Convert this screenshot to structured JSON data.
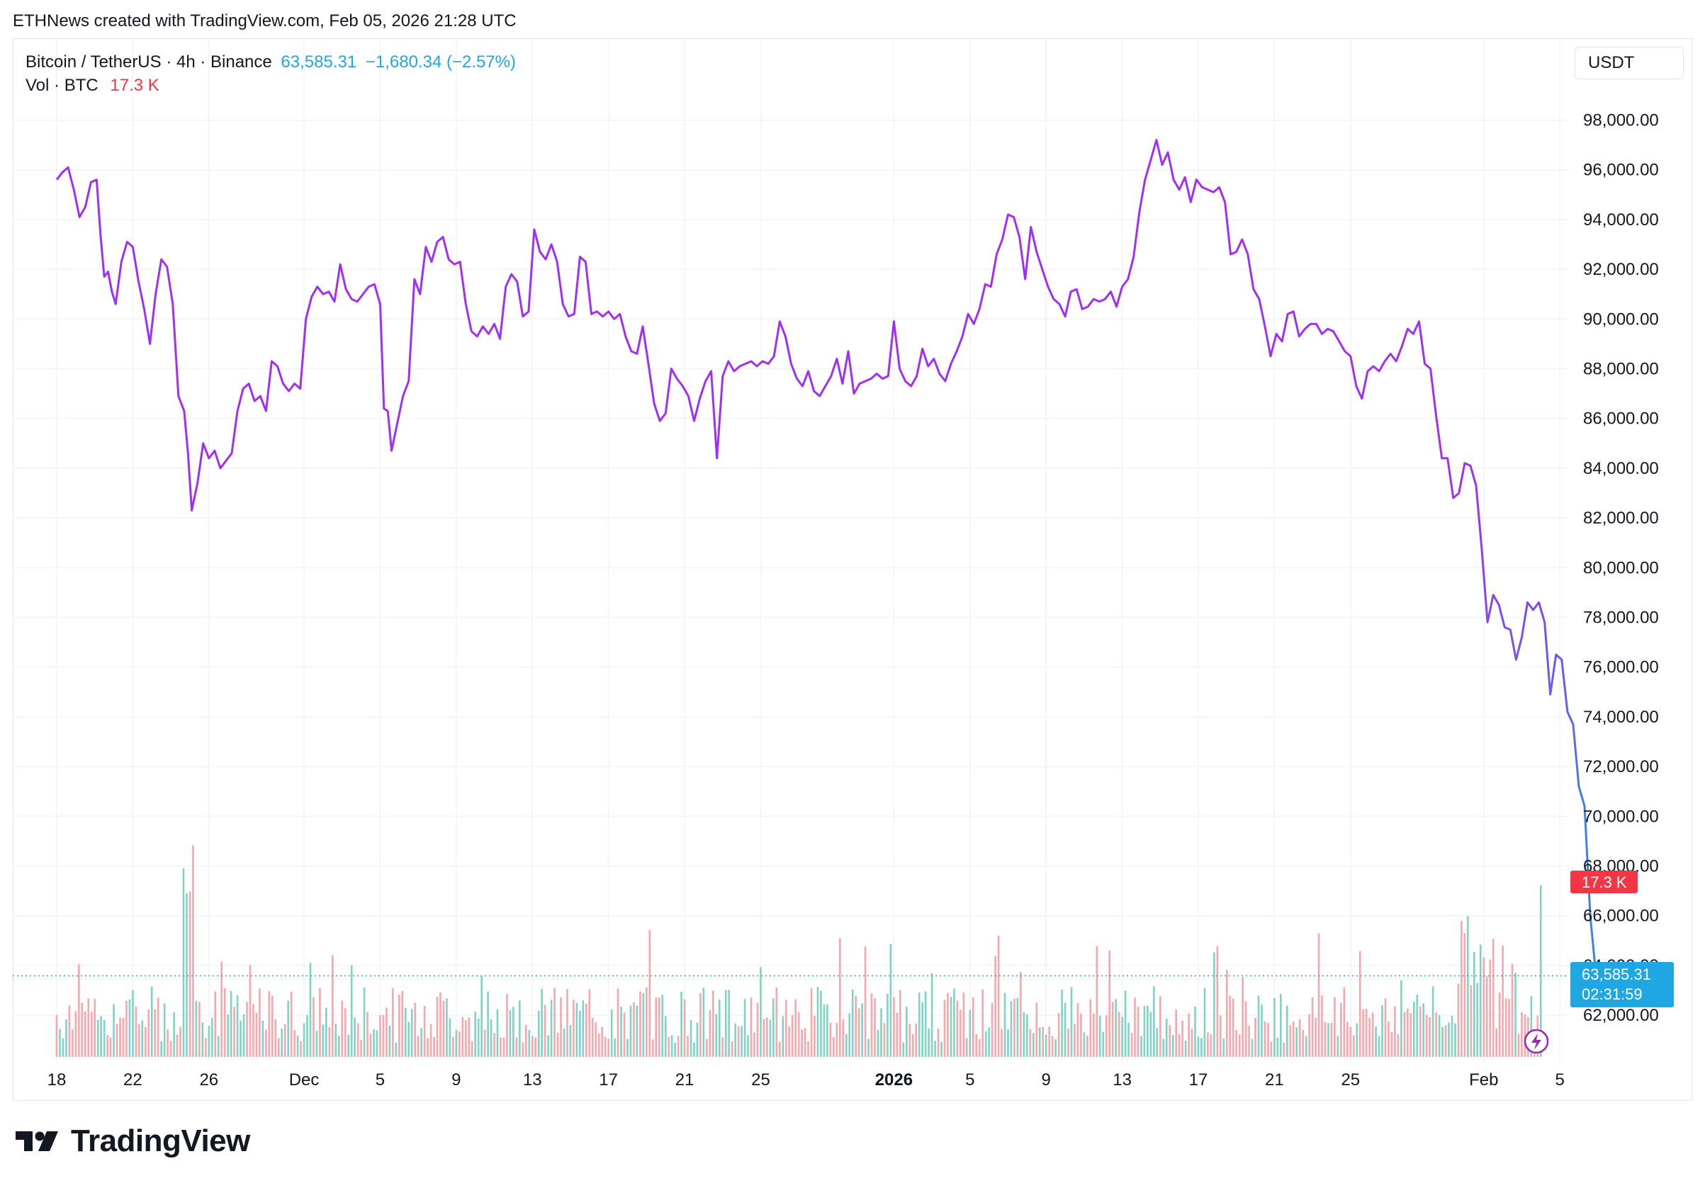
{
  "header": {
    "caption": "ETHNews created with TradingView.com, Feb 05, 2026 21:28 UTC"
  },
  "legend": {
    "symbol": "Bitcoin / TetherUS · 4h · Binance",
    "price": "63,585.31",
    "change": "−1,680.34 (−2.57%)",
    "vol_label": "Vol · BTC",
    "vol_value": "17.3 K"
  },
  "currency_button": "USDT",
  "badges": {
    "volume": "17.3 K",
    "price": "63,585.31",
    "countdown": "02:31:59"
  },
  "footer": {
    "logo_text": "TradingView"
  },
  "colors": {
    "line_purple": "#a02ff5",
    "line_blue": "#3f7fe6",
    "price_blue": "#089981",
    "accent_blue": "#1ea7e3",
    "down_red": "#f23645",
    "vol_up": "#7ed3c5",
    "vol_down": "#f7a6ab",
    "grid": "#f0f3fa"
  },
  "chart_data": {
    "type": "line",
    "yaxis": {
      "ticks": [
        62000,
        64000,
        66000,
        68000,
        70000,
        72000,
        74000,
        76000,
        78000,
        80000,
        82000,
        84000,
        86000,
        88000,
        90000,
        92000,
        94000,
        96000,
        98000
      ],
      "tick_labels": [
        "62,000.00",
        "64,000.00",
        "66,000.00",
        "68,000.00",
        "70,000.00",
        "72,000.00",
        "74,000.00",
        "76,000.00",
        "78,000.00",
        "80,000.00",
        "82,000.00",
        "84,000.00",
        "86,000.00",
        "88,000.00",
        "90,000.00",
        "92,000.00",
        "94,000.00",
        "96,000.00",
        "98,000.00"
      ],
      "side": "right"
    },
    "xaxis": {
      "tick_labels": [
        "18",
        "22",
        "26",
        "Dec",
        "5",
        "9",
        "13",
        "17",
        "21",
        "25",
        "2026",
        "5",
        "9",
        "13",
        "17",
        "21",
        "25",
        "Feb",
        "5"
      ],
      "tick_days": [
        0,
        4,
        8,
        13,
        17,
        21,
        25,
        29,
        33,
        37,
        44,
        48,
        52,
        56,
        60,
        64,
        68,
        75,
        79
      ]
    },
    "series": [
      {
        "points": [
          [
            0,
            95600
          ],
          [
            0.3,
            95900
          ],
          [
            0.6,
            96100
          ],
          [
            0.9,
            95200
          ],
          [
            1.2,
            94100
          ],
          [
            1.5,
            94500
          ],
          [
            1.8,
            95500
          ],
          [
            2.1,
            95600
          ],
          [
            2.3,
            93400
          ],
          [
            2.5,
            91700
          ],
          [
            2.7,
            91900
          ],
          [
            2.9,
            91100
          ],
          [
            3.1,
            90600
          ],
          [
            3.4,
            92300
          ],
          [
            3.7,
            93100
          ],
          [
            4.0,
            92900
          ],
          [
            4.3,
            91500
          ],
          [
            4.6,
            90400
          ],
          [
            4.9,
            89000
          ],
          [
            5.2,
            91000
          ],
          [
            5.5,
            92400
          ],
          [
            5.8,
            92100
          ],
          [
            6.1,
            90600
          ],
          [
            6.4,
            86900
          ],
          [
            6.7,
            86300
          ],
          [
            6.9,
            84600
          ],
          [
            7.1,
            82300
          ],
          [
            7.4,
            83400
          ],
          [
            7.7,
            85000
          ],
          [
            8.0,
            84400
          ],
          [
            8.3,
            84700
          ],
          [
            8.6,
            84000
          ],
          [
            8.9,
            84300
          ],
          [
            9.2,
            84600
          ],
          [
            9.5,
            86300
          ],
          [
            9.8,
            87200
          ],
          [
            10.1,
            87400
          ],
          [
            10.4,
            86700
          ],
          [
            10.7,
            86900
          ],
          [
            11.0,
            86300
          ],
          [
            11.3,
            88300
          ],
          [
            11.6,
            88100
          ],
          [
            11.9,
            87400
          ],
          [
            12.2,
            87100
          ],
          [
            12.5,
            87400
          ],
          [
            12.8,
            87200
          ],
          [
            13.1,
            90000
          ],
          [
            13.4,
            90900
          ],
          [
            13.7,
            91300
          ],
          [
            14.0,
            91000
          ],
          [
            14.3,
            91100
          ],
          [
            14.6,
            90700
          ],
          [
            14.9,
            92200
          ],
          [
            15.2,
            91200
          ],
          [
            15.5,
            90800
          ],
          [
            15.8,
            90700
          ],
          [
            16.1,
            91000
          ],
          [
            16.4,
            91300
          ],
          [
            16.7,
            91400
          ],
          [
            17.0,
            90600
          ],
          [
            17.2,
            86400
          ],
          [
            17.4,
            86300
          ],
          [
            17.6,
            84700
          ],
          [
            17.9,
            85800
          ],
          [
            18.2,
            86900
          ],
          [
            18.5,
            87500
          ],
          [
            18.8,
            91600
          ],
          [
            19.1,
            91000
          ],
          [
            19.4,
            92900
          ],
          [
            19.7,
            92300
          ],
          [
            20.0,
            93100
          ],
          [
            20.3,
            93300
          ],
          [
            20.6,
            92400
          ],
          [
            20.9,
            92200
          ],
          [
            21.2,
            92300
          ],
          [
            21.5,
            90600
          ],
          [
            21.8,
            89500
          ],
          [
            22.1,
            89300
          ],
          [
            22.4,
            89700
          ],
          [
            22.7,
            89400
          ],
          [
            23.0,
            89800
          ],
          [
            23.3,
            89200
          ],
          [
            23.6,
            91300
          ],
          [
            23.9,
            91800
          ],
          [
            24.2,
            91500
          ],
          [
            24.5,
            90100
          ],
          [
            24.8,
            90300
          ],
          [
            25.1,
            93600
          ],
          [
            25.4,
            92700
          ],
          [
            25.7,
            92400
          ],
          [
            26.0,
            93000
          ],
          [
            26.3,
            92300
          ],
          [
            26.6,
            90600
          ],
          [
            26.9,
            90100
          ],
          [
            27.2,
            90200
          ],
          [
            27.5,
            92500
          ],
          [
            27.8,
            92300
          ],
          [
            28.1,
            90200
          ],
          [
            28.4,
            90300
          ],
          [
            28.7,
            90100
          ],
          [
            29.0,
            90300
          ],
          [
            29.3,
            90000
          ],
          [
            29.6,
            90200
          ],
          [
            29.9,
            89300
          ],
          [
            30.2,
            88700
          ],
          [
            30.5,
            88600
          ],
          [
            30.8,
            89700
          ],
          [
            31.1,
            88200
          ],
          [
            31.4,
            86600
          ],
          [
            31.7,
            85900
          ],
          [
            32.0,
            86200
          ],
          [
            32.3,
            88000
          ],
          [
            32.6,
            87600
          ],
          [
            32.9,
            87300
          ],
          [
            33.2,
            86900
          ],
          [
            33.5,
            85900
          ],
          [
            33.8,
            86800
          ],
          [
            34.1,
            87500
          ],
          [
            34.4,
            87900
          ],
          [
            34.7,
            84400
          ],
          [
            35.0,
            87700
          ],
          [
            35.3,
            88300
          ],
          [
            35.6,
            87900
          ],
          [
            35.9,
            88100
          ],
          [
            36.2,
            88200
          ],
          [
            36.5,
            88300
          ],
          [
            36.8,
            88100
          ],
          [
            37.1,
            88300
          ],
          [
            37.4,
            88200
          ],
          [
            37.7,
            88500
          ],
          [
            38.0,
            89900
          ],
          [
            38.3,
            89300
          ],
          [
            38.6,
            88200
          ],
          [
            38.9,
            87600
          ],
          [
            39.2,
            87300
          ],
          [
            39.5,
            87900
          ],
          [
            39.8,
            87100
          ],
          [
            40.1,
            86900
          ],
          [
            40.4,
            87300
          ],
          [
            40.7,
            87700
          ],
          [
            41.0,
            88400
          ],
          [
            41.3,
            87400
          ],
          [
            41.6,
            88700
          ],
          [
            41.9,
            87000
          ],
          [
            42.2,
            87400
          ],
          [
            42.5,
            87500
          ],
          [
            42.8,
            87600
          ],
          [
            43.1,
            87800
          ],
          [
            43.4,
            87600
          ],
          [
            43.7,
            87700
          ],
          [
            44.0,
            89900
          ],
          [
            44.3,
            88000
          ],
          [
            44.6,
            87500
          ],
          [
            44.9,
            87300
          ],
          [
            45.2,
            87700
          ],
          [
            45.5,
            88800
          ],
          [
            45.8,
            88100
          ],
          [
            46.1,
            88400
          ],
          [
            46.4,
            87800
          ],
          [
            46.7,
            87500
          ],
          [
            47.0,
            88200
          ],
          [
            47.3,
            88700
          ],
          [
            47.6,
            89300
          ],
          [
            47.9,
            90200
          ],
          [
            48.2,
            89800
          ],
          [
            48.5,
            90400
          ],
          [
            48.8,
            91400
          ],
          [
            49.1,
            91300
          ],
          [
            49.4,
            92600
          ],
          [
            49.7,
            93200
          ],
          [
            50.0,
            94200
          ],
          [
            50.3,
            94100
          ],
          [
            50.6,
            93300
          ],
          [
            50.9,
            91600
          ],
          [
            51.2,
            93700
          ],
          [
            51.5,
            92700
          ],
          [
            51.8,
            92000
          ],
          [
            52.1,
            91300
          ],
          [
            52.4,
            90800
          ],
          [
            52.7,
            90600
          ],
          [
            53.0,
            90100
          ],
          [
            53.3,
            91100
          ],
          [
            53.6,
            91200
          ],
          [
            53.9,
            90400
          ],
          [
            54.2,
            90500
          ],
          [
            54.5,
            90800
          ],
          [
            54.8,
            90700
          ],
          [
            55.1,
            90800
          ],
          [
            55.4,
            91100
          ],
          [
            55.7,
            90500
          ],
          [
            56.0,
            91300
          ],
          [
            56.3,
            91600
          ],
          [
            56.6,
            92500
          ],
          [
            56.9,
            94300
          ],
          [
            57.2,
            95600
          ],
          [
            57.5,
            96400
          ],
          [
            57.8,
            97200
          ],
          [
            58.1,
            96200
          ],
          [
            58.4,
            96700
          ],
          [
            58.7,
            95600
          ],
          [
            59.0,
            95200
          ],
          [
            59.3,
            95700
          ],
          [
            59.6,
            94700
          ],
          [
            59.9,
            95600
          ],
          [
            60.2,
            95300
          ],
          [
            60.5,
            95200
          ],
          [
            60.8,
            95100
          ],
          [
            61.1,
            95300
          ],
          [
            61.4,
            94700
          ],
          [
            61.7,
            92600
          ],
          [
            62.0,
            92700
          ],
          [
            62.3,
            93200
          ],
          [
            62.6,
            92600
          ],
          [
            62.9,
            91200
          ],
          [
            63.2,
            90800
          ],
          [
            63.5,
            89700
          ],
          [
            63.8,
            88500
          ],
          [
            64.1,
            89400
          ],
          [
            64.4,
            89100
          ],
          [
            64.7,
            90200
          ],
          [
            65.0,
            90300
          ],
          [
            65.3,
            89300
          ],
          [
            65.6,
            89600
          ],
          [
            65.9,
            89800
          ],
          [
            66.2,
            89800
          ],
          [
            66.5,
            89400
          ],
          [
            66.8,
            89600
          ],
          [
            67.1,
            89500
          ],
          [
            67.4,
            89100
          ],
          [
            67.7,
            88700
          ],
          [
            68.0,
            88500
          ],
          [
            68.3,
            87300
          ],
          [
            68.6,
            86800
          ],
          [
            68.9,
            87900
          ],
          [
            69.2,
            88100
          ],
          [
            69.5,
            87900
          ],
          [
            69.8,
            88300
          ],
          [
            70.1,
            88600
          ],
          [
            70.4,
            88300
          ],
          [
            70.7,
            88900
          ],
          [
            71.0,
            89600
          ],
          [
            71.3,
            89400
          ],
          [
            71.6,
            89900
          ],
          [
            71.9,
            88200
          ],
          [
            72.2,
            88000
          ],
          [
            72.5,
            86100
          ],
          [
            72.8,
            84400
          ],
          [
            73.1,
            84400
          ],
          [
            73.4,
            82800
          ],
          [
            73.7,
            83000
          ],
          [
            74.0,
            84200
          ],
          [
            74.3,
            84100
          ],
          [
            74.6,
            83300
          ],
          [
            74.9,
            80700
          ],
          [
            75.2,
            77800
          ],
          [
            75.5,
            78900
          ],
          [
            75.8,
            78500
          ],
          [
            76.1,
            77600
          ],
          [
            76.4,
            77500
          ],
          [
            76.7,
            76300
          ],
          [
            77.0,
            77200
          ],
          [
            77.3,
            78600
          ],
          [
            77.6,
            78300
          ],
          [
            77.9,
            78600
          ],
          [
            78.2,
            77800
          ],
          [
            78.5,
            74900
          ],
          [
            78.8,
            76500
          ],
          [
            79.1,
            76300
          ],
          [
            79.4,
            74200
          ],
          [
            79.7,
            73700
          ],
          [
            80.0,
            71200
          ],
          [
            80.3,
            70400
          ],
          [
            80.6,
            66000
          ],
          [
            80.9,
            63585
          ]
        ]
      }
    ]
  }
}
